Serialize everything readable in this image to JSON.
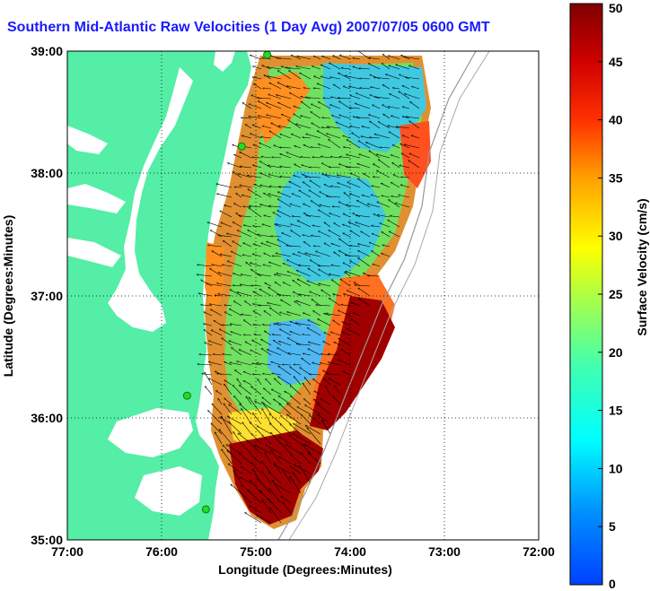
{
  "title": "Southern Mid-Atlantic Raw Velocities (1 Day Avg) 2007/07/05 0600 GMT",
  "chart_data": {
    "type": "map",
    "xlabel": "Longitude (Degrees:Minutes)",
    "ylabel": "Latitude (Degrees:Minutes)",
    "x_ticks": [
      "77:00",
      "76:00",
      "75:00",
      "74:00",
      "73:00",
      "72:00"
    ],
    "y_ticks": [
      "39:00",
      "38:00",
      "37:00",
      "36:00",
      "35:00"
    ],
    "xlim": [
      -77,
      -72
    ],
    "ylim": [
      35,
      39
    ],
    "grid": true,
    "colorbar": {
      "label": "Surface Velocity (cm/s)",
      "range": [
        0,
        50
      ],
      "ticks": [
        "50",
        "45",
        "40",
        "35",
        "30",
        "25",
        "20",
        "15",
        "10",
        "5",
        "0"
      ],
      "colormap": "jet"
    },
    "stations": [
      {
        "lon": -74.88,
        "lat": 38.97
      },
      {
        "lon": -75.15,
        "lat": 38.22
      },
      {
        "lon": -75.73,
        "lat": 36.18
      },
      {
        "lon": -75.53,
        "lat": 35.25
      }
    ]
  },
  "colors": {
    "land": "#54eea6",
    "title": "#1a1aff",
    "station": "#22dd22"
  }
}
